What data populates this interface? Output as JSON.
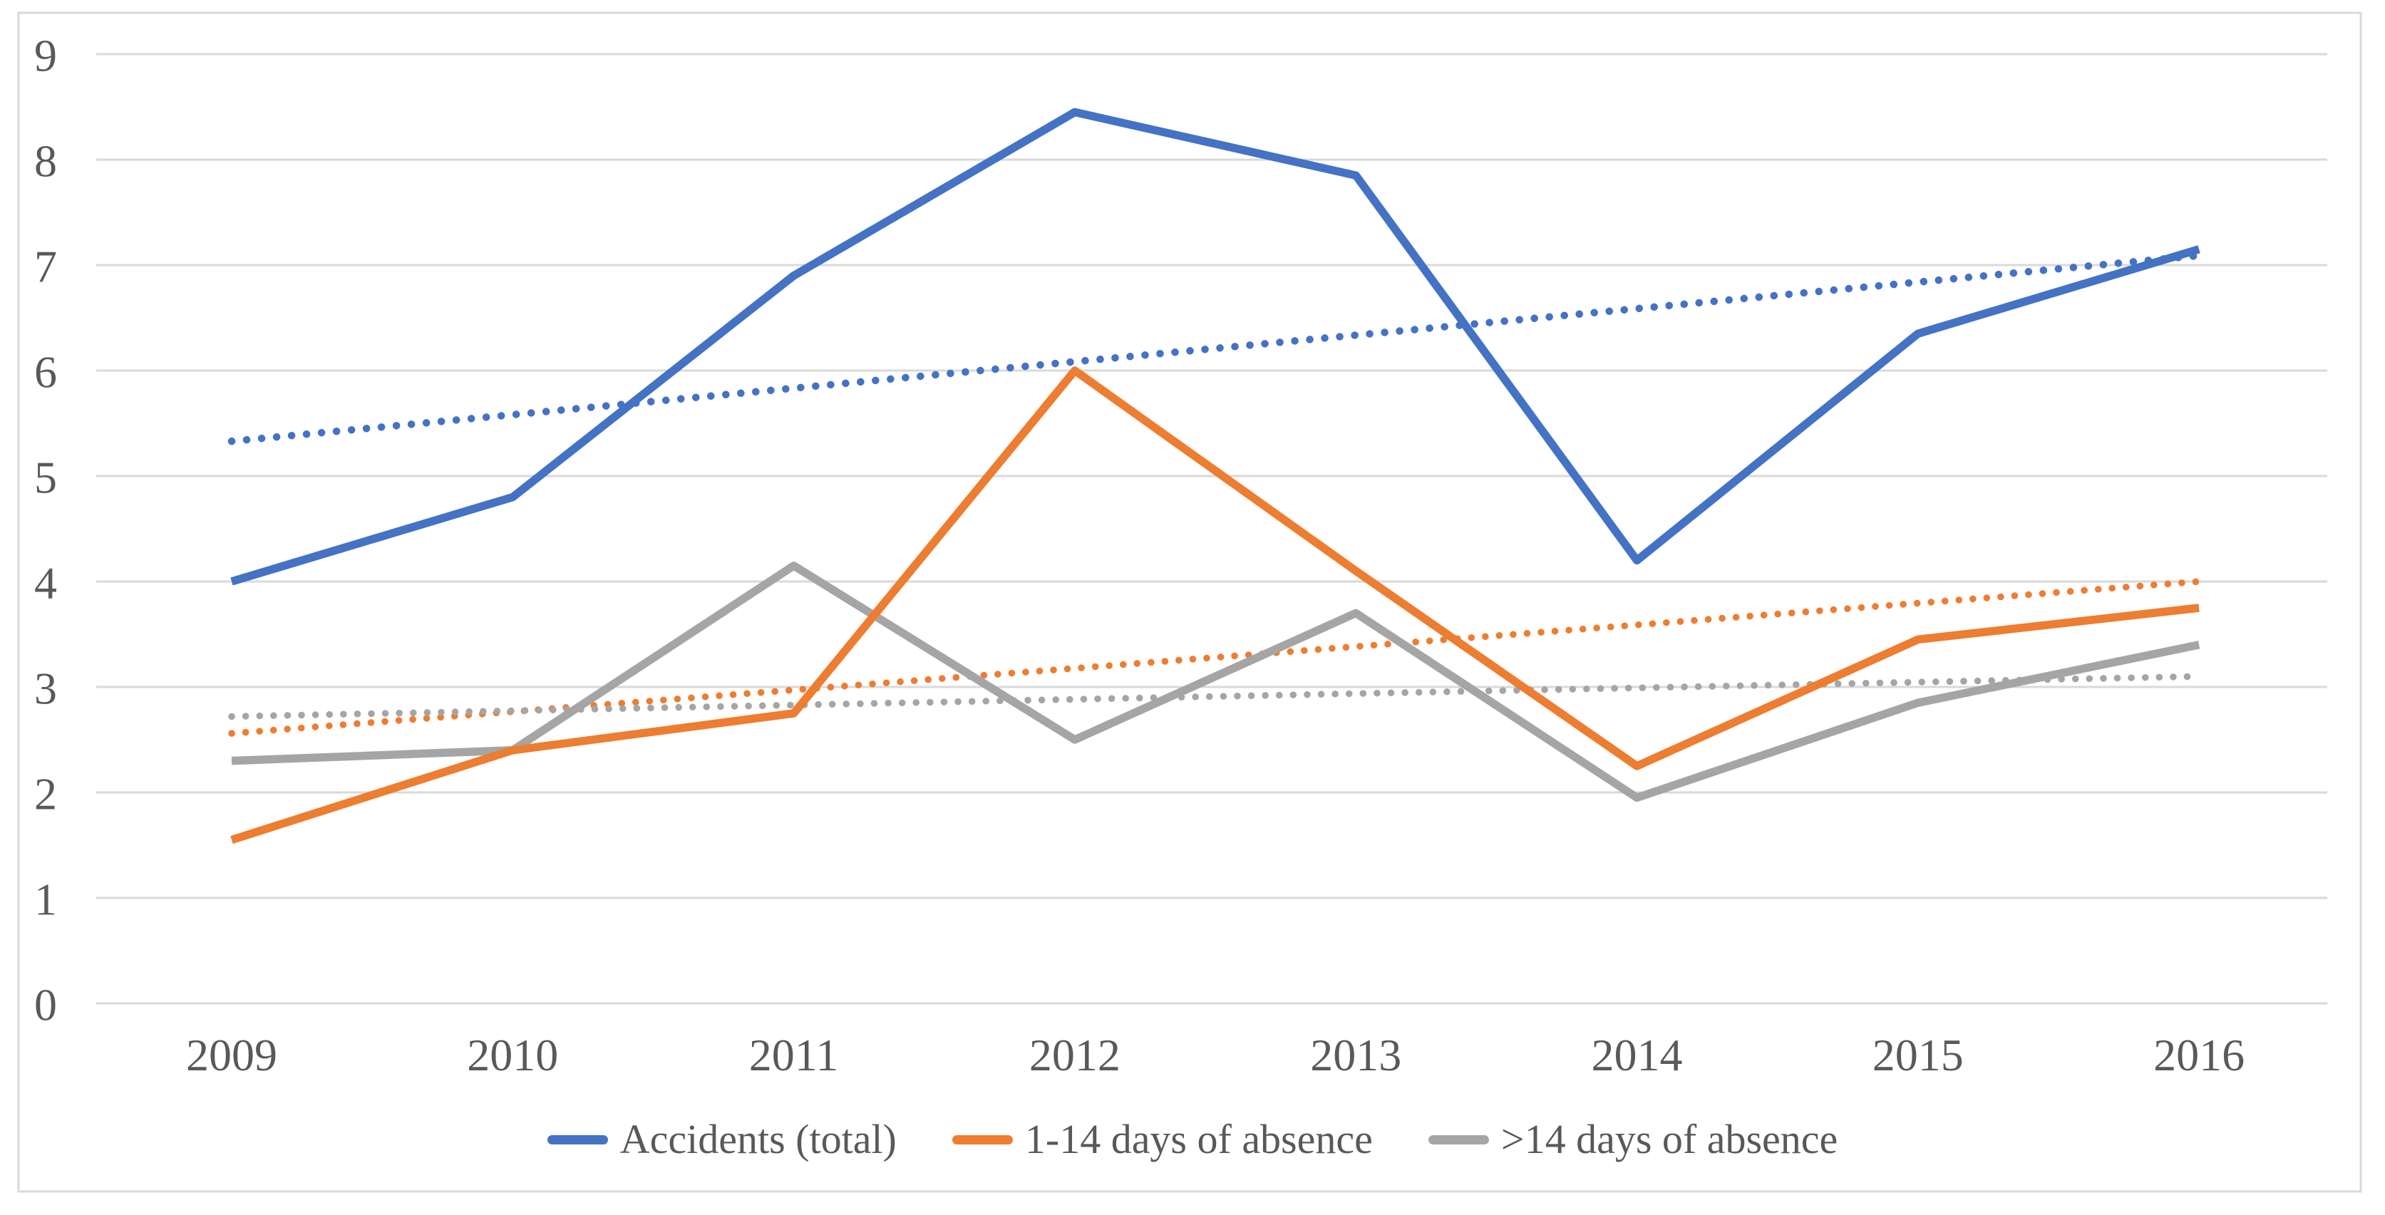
{
  "chart_data": {
    "type": "line",
    "categories": [
      "2009",
      "2010",
      "2011",
      "2012",
      "2013",
      "2014",
      "2015",
      "2016"
    ],
    "yticks": [
      "0",
      "1",
      "2",
      "3",
      "4",
      "5",
      "6",
      "7",
      "8",
      "9"
    ],
    "ylim": [
      0,
      9
    ],
    "grid": true,
    "legend_position": "bottom",
    "gridline_color": "#D9D9D9",
    "border_color": "#D9D9D9",
    "axis_text_color": "#595959",
    "series": [
      {
        "name": "Accidents (total)",
        "color": "#4472C4",
        "line_style": "solid",
        "values": [
          4.0,
          4.8,
          6.9,
          8.45,
          7.85,
          4.2,
          6.35,
          7.15
        ],
        "trendline": {
          "style": "dotted",
          "start": 5.33,
          "end": 7.09
        }
      },
      {
        "name": "1-14 days of absence",
        "color": "#ED7D31",
        "line_style": "solid",
        "values": [
          1.55,
          2.4,
          2.75,
          6.0,
          4.1,
          2.25,
          3.45,
          3.75
        ],
        "trendline": {
          "style": "dotted",
          "start": 2.56,
          "end": 4.0
        }
      },
      {
        "name": ">14 days of absence",
        "color": "#A5A5A5",
        "line_style": "solid",
        "values": [
          2.3,
          2.4,
          4.15,
          2.5,
          3.7,
          1.95,
          2.85,
          3.4
        ],
        "trendline": {
          "style": "dotted",
          "start": 2.72,
          "end": 3.1
        }
      }
    ]
  }
}
